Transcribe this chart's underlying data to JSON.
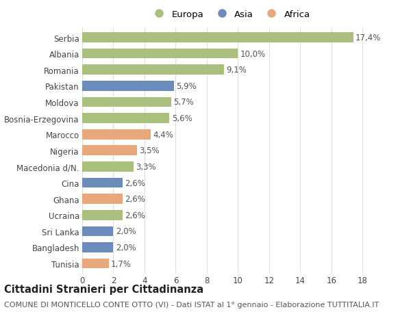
{
  "categories": [
    "Tunisia",
    "Bangladesh",
    "Sri Lanka",
    "Ucraina",
    "Ghana",
    "Cina",
    "Macedonia d/N.",
    "Nigeria",
    "Marocco",
    "Bosnia-Erzegovina",
    "Moldova",
    "Pakistan",
    "Romania",
    "Albania",
    "Serbia"
  ],
  "values": [
    1.7,
    2.0,
    2.0,
    2.6,
    2.6,
    2.6,
    3.3,
    3.5,
    4.4,
    5.6,
    5.7,
    5.9,
    9.1,
    10.0,
    17.4
  ],
  "colors": [
    "#e8a87c",
    "#6b8cba",
    "#6b8cba",
    "#aabf7e",
    "#e8a87c",
    "#6b8cba",
    "#aabf7e",
    "#e8a87c",
    "#e8a87c",
    "#aabf7e",
    "#aabf7e",
    "#6b8cba",
    "#aabf7e",
    "#aabf7e",
    "#aabf7e"
  ],
  "labels": [
    "1,7%",
    "2,0%",
    "2,0%",
    "2,6%",
    "2,6%",
    "2,6%",
    "3,3%",
    "3,5%",
    "4,4%",
    "5,6%",
    "5,7%",
    "5,9%",
    "9,1%",
    "10,0%",
    "17,4%"
  ],
  "legend_labels": [
    "Europa",
    "Asia",
    "Africa"
  ],
  "legend_colors": [
    "#aabf7e",
    "#6b8cba",
    "#e8a87c"
  ],
  "title": "Cittadini Stranieri per Cittadinanza",
  "subtitle": "COMUNE DI MONTICELLO CONTE OTTO (VI) - Dati ISTAT al 1° gennaio - Elaborazione TUTTITALIA.IT",
  "xlim": [
    0,
    19
  ],
  "xticks": [
    0,
    2,
    4,
    6,
    8,
    10,
    12,
    14,
    16,
    18
  ],
  "background_color": "#ffffff",
  "grid_color": "#dddddd",
  "bar_height": 0.62,
  "title_fontsize": 10.5,
  "subtitle_fontsize": 8,
  "label_fontsize": 8.5,
  "tick_fontsize": 8.5,
  "legend_fontsize": 9.5
}
